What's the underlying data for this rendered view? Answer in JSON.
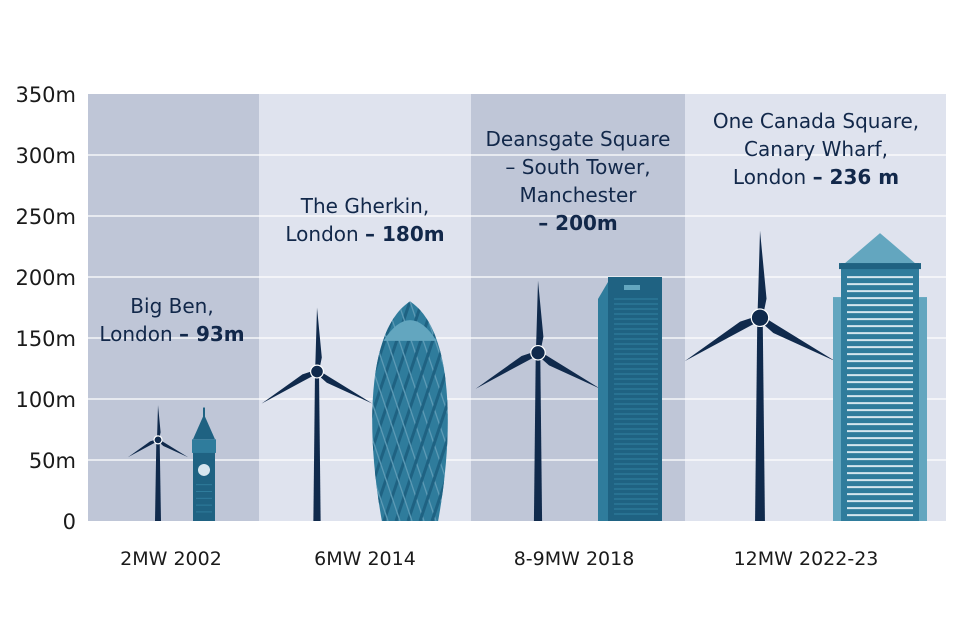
{
  "chart_data": {
    "type": "bar",
    "y_axis": {
      "min": 0,
      "max": 350,
      "step": 50,
      "tick_labels": [
        "0",
        "50m",
        "100m",
        "150m",
        "200m",
        "250m",
        "300m",
        "350m"
      ]
    },
    "grid": true,
    "categories": [
      "2MW 2002",
      "6MW 2014",
      "8-9MW 2018",
      "12MW 2022-23"
    ],
    "series": [
      {
        "values": [
          95,
          175,
          197,
          238
        ]
      },
      {
        "values": [
          93,
          180,
          200,
          236
        ],
        "building_types": [
          "big-ben",
          "gherkin",
          "deansgate",
          "canada-square"
        ]
      }
    ],
    "annotations": [
      {
        "lines": [
          [
            "Big Ben,",
            ""
          ],
          [
            "London ",
            "– 93m"
          ]
        ]
      },
      {
        "lines": [
          [
            "The Gherkin,",
            ""
          ],
          [
            "London ",
            "– 180m"
          ]
        ]
      },
      {
        "lines": [
          [
            "Deansgate Square",
            ""
          ],
          [
            "– South Tower,",
            ""
          ],
          [
            "Manchester",
            ""
          ],
          [
            "",
            "– 200m"
          ]
        ]
      },
      {
        "lines": [
          [
            "One Canada Square,",
            ""
          ],
          [
            "Canary Wharf,",
            ""
          ],
          [
            "London ",
            "– 236 m"
          ]
        ]
      }
    ],
    "colors": {
      "panel_dark": "#bfc6d7",
      "panel_light": "#dfe3ee",
      "turbine": "#102a4c",
      "building_dark": "#1f6282",
      "building_mid": "#2f7c9c",
      "building_light": "#63a6bf",
      "grid": "#ffffff",
      "annotation": "#12284a"
    }
  }
}
